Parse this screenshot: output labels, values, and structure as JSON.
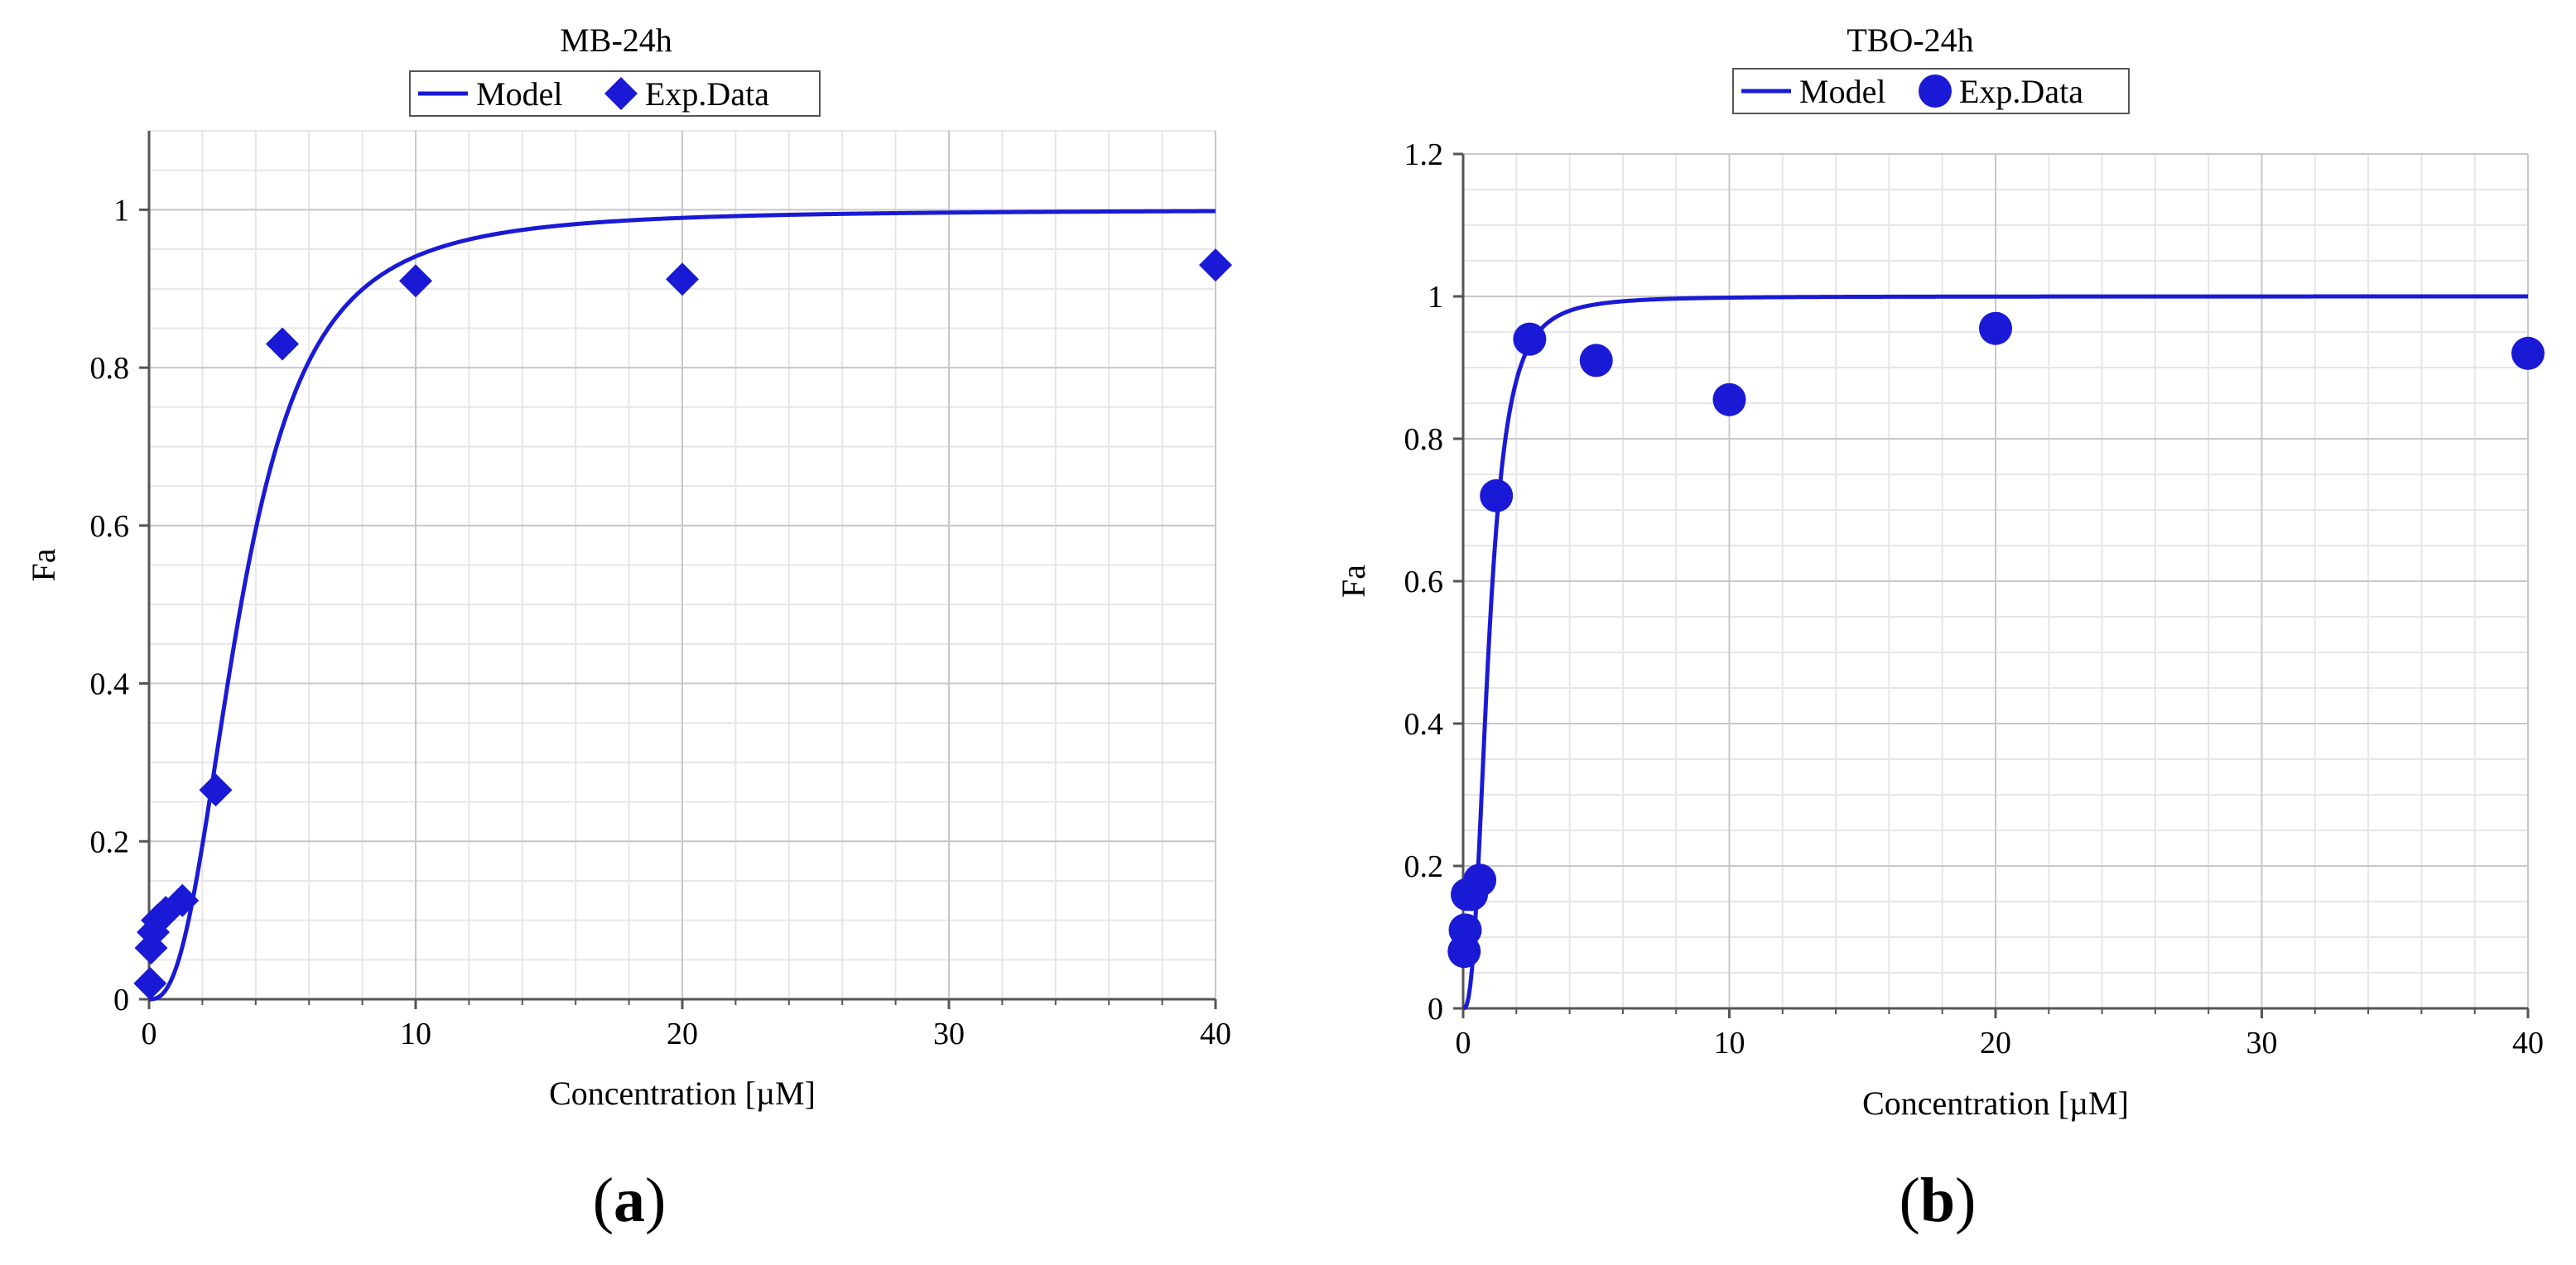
{
  "colors": {
    "series": "#1a1ad6",
    "grid_major": "#c8c8c8",
    "grid_minor": "#e6e6e6",
    "axis": "#555555"
  },
  "chart_data": [
    {
      "type": "scatter",
      "panel": "a",
      "title": "MB-24h",
      "xlabel": "Concentration [µM]",
      "ylabel": "Fa",
      "xlim": [
        0,
        40
      ],
      "ylim": [
        0,
        1.1
      ],
      "xticks": [
        0,
        10,
        20,
        30,
        40
      ],
      "yticks": [
        0,
        0.2,
        0.4,
        0.6,
        0.8,
        1
      ],
      "ytick_labels": [
        "0",
        "0.2",
        "0.4",
        "0.6",
        "0.8",
        "1"
      ],
      "xtick_labels": [
        "0",
        "10",
        "20",
        "30",
        "40"
      ],
      "grid": true,
      "legend": {
        "placement": "top-center",
        "entries": [
          "Model",
          "Exp.Data"
        ]
      },
      "marker": "diamond",
      "model": {
        "name": "Model",
        "dm": 3.45,
        "m": 2.6
      },
      "series": [
        {
          "name": "Exp.Data",
          "x": [
            0.039,
            0.078,
            0.156,
            0.3125,
            0.625,
            1.25,
            2.5,
            5,
            10,
            20,
            40
          ],
          "y": [
            0.02,
            0.065,
            0.085,
            0.1,
            0.11,
            0.125,
            0.265,
            0.83,
            0.91,
            0.912,
            0.93
          ]
        }
      ]
    },
    {
      "type": "scatter",
      "panel": "b",
      "title": "TBO-24h",
      "xlabel": "Concentration [µM]",
      "ylabel": "Fa",
      "xlim": [
        0,
        40
      ],
      "ylim": [
        0,
        1.2
      ],
      "xticks": [
        0,
        10,
        20,
        30,
        40
      ],
      "yticks": [
        0,
        0.2,
        0.4,
        0.6,
        0.8,
        1,
        1.2
      ],
      "ytick_labels": [
        "0",
        "0.2",
        "0.4",
        "0.6",
        "0.8",
        "1",
        "1.2"
      ],
      "xtick_labels": [
        "0",
        "10",
        "20",
        "30",
        "40"
      ],
      "grid": true,
      "legend": {
        "placement": "top-center",
        "entries": [
          "Model",
          "Exp.Data"
        ]
      },
      "marker": "circle",
      "model": {
        "name": "Model",
        "dm": 0.95,
        "m": 2.7
      },
      "series": [
        {
          "name": "Exp.Data",
          "x": [
            0.039,
            0.078,
            0.156,
            0.3125,
            0.625,
            1.25,
            2.5,
            5,
            10,
            20,
            40
          ],
          "y": [
            0.08,
            0.11,
            0.16,
            0.16,
            0.18,
            0.72,
            0.94,
            0.91,
            0.855,
            0.955,
            0.92
          ]
        }
      ]
    }
  ],
  "captions": {
    "a": "(a)",
    "b": "(b)"
  }
}
